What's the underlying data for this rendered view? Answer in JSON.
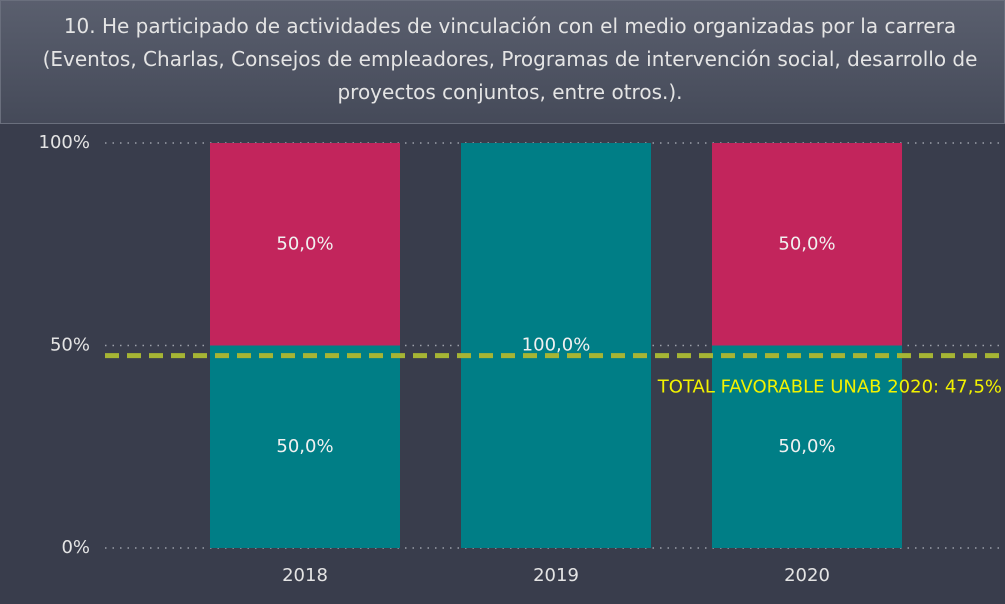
{
  "chart_data": {
    "type": "stacked_bar",
    "title": "10. He participado de actividades de vinculación con el medio organizadas por la carrera (Eventos, Charlas, Consejos de empleadores, Programas de intervención social, desarrollo de proyectos conjuntos, entre otros.).",
    "categories": [
      "2018",
      "2019",
      "2020"
    ],
    "series": [
      {
        "color": "#007e86",
        "values": [
          50,
          100,
          50
        ],
        "value_labels": [
          "50,0%",
          "100,0%",
          "50,0%"
        ]
      },
      {
        "color": "#c2255c",
        "values": [
          50,
          0,
          50
        ],
        "value_labels": [
          "50,0%",
          null,
          "50,0%"
        ]
      }
    ],
    "ylim": [
      0,
      100
    ],
    "yticks": [
      {
        "value": 0,
        "label": "0%"
      },
      {
        "value": 50,
        "label": "50%"
      },
      {
        "value": 100,
        "label": "100%"
      }
    ],
    "grid": true,
    "reference_line": {
      "value": 47.5,
      "label": "TOTAL FAVORABLE UNAB 2020: 47,5%",
      "color": "#a6b534",
      "label_color": "#f2f200"
    }
  }
}
